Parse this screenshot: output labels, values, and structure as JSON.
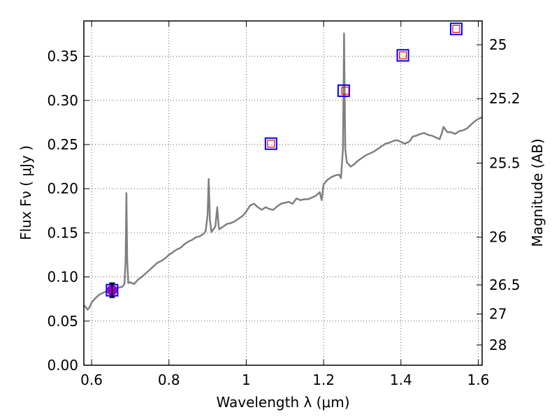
{
  "chart_data": {
    "type": "line",
    "xlabel": "Wavelength  λ (μm)",
    "ylabel": "Flux  Fν  ( μJy )",
    "y2label": "Magnitude (AB)",
    "xlim": [
      0.58,
      1.61
    ],
    "ylim": [
      0.0,
      0.39
    ],
    "x_ticks": [
      0.6,
      0.8,
      1.0,
      1.2,
      1.4,
      1.6
    ],
    "x_tick_labels": [
      "0.6",
      "0.8",
      "1",
      "1.2",
      "1.4",
      "1.6"
    ],
    "y_ticks": [
      0.0,
      0.05,
      0.1,
      0.15,
      0.2,
      0.25,
      0.3,
      0.35
    ],
    "y_tick_labels": [
      "0.00",
      "0.05",
      "0.10",
      "0.15",
      "0.20",
      "0.25",
      "0.30",
      "0.35"
    ],
    "right_axis_ticks": [
      {
        "label": "25",
        "flux": 0.363
      },
      {
        "label": "25.2",
        "flux": 0.302
      },
      {
        "label": "25.5",
        "flux": 0.229
      },
      {
        "label": "26",
        "flux": 0.145
      },
      {
        "label": "26.5",
        "flux": 0.091
      },
      {
        "label": "27",
        "flux": 0.058
      },
      {
        "label": "28",
        "flux": 0.023
      }
    ],
    "grid": true,
    "series": [
      {
        "kind": "spectrum",
        "color": "#808080",
        "x": [
          0.58,
          0.59,
          0.595,
          0.6,
          0.61,
          0.62,
          0.63,
          0.64,
          0.65,
          0.66,
          0.67,
          0.68,
          0.685,
          0.688,
          0.69,
          0.692,
          0.695,
          0.7,
          0.71,
          0.72,
          0.73,
          0.74,
          0.75,
          0.76,
          0.77,
          0.78,
          0.79,
          0.8,
          0.81,
          0.82,
          0.83,
          0.84,
          0.85,
          0.86,
          0.87,
          0.88,
          0.89,
          0.895,
          0.9,
          0.903,
          0.906,
          0.91,
          0.92,
          0.925,
          0.928,
          0.93,
          0.94,
          0.95,
          0.96,
          0.97,
          0.98,
          0.99,
          1.0,
          1.01,
          1.02,
          1.03,
          1.04,
          1.05,
          1.06,
          1.07,
          1.08,
          1.09,
          1.1,
          1.11,
          1.12,
          1.13,
          1.14,
          1.15,
          1.16,
          1.17,
          1.18,
          1.19,
          1.195,
          1.2,
          1.21,
          1.22,
          1.23,
          1.24,
          1.245,
          1.25,
          1.253,
          1.256,
          1.26,
          1.27,
          1.28,
          1.29,
          1.3,
          1.31,
          1.32,
          1.33,
          1.34,
          1.35,
          1.36,
          1.37,
          1.38,
          1.39,
          1.4,
          1.41,
          1.42,
          1.425,
          1.43,
          1.44,
          1.45,
          1.46,
          1.47,
          1.48,
          1.49,
          1.5,
          1.505,
          1.51,
          1.52,
          1.53,
          1.54,
          1.55,
          1.56,
          1.57,
          1.58,
          1.59,
          1.6,
          1.61
        ],
        "y": [
          0.068,
          0.063,
          0.066,
          0.071,
          0.076,
          0.08,
          0.082,
          0.084,
          0.085,
          0.087,
          0.088,
          0.089,
          0.092,
          0.12,
          0.195,
          0.12,
          0.093,
          0.094,
          0.092,
          0.097,
          0.1,
          0.104,
          0.108,
          0.112,
          0.116,
          0.118,
          0.121,
          0.125,
          0.128,
          0.131,
          0.133,
          0.137,
          0.14,
          0.142,
          0.145,
          0.146,
          0.149,
          0.152,
          0.17,
          0.211,
          0.165,
          0.151,
          0.157,
          0.179,
          0.16,
          0.154,
          0.157,
          0.16,
          0.161,
          0.163,
          0.166,
          0.169,
          0.174,
          0.181,
          0.183,
          0.179,
          0.176,
          0.179,
          0.177,
          0.176,
          0.18,
          0.183,
          0.184,
          0.185,
          0.183,
          0.189,
          0.187,
          0.188,
          0.188,
          0.19,
          0.192,
          0.196,
          0.187,
          0.205,
          0.21,
          0.213,
          0.215,
          0.216,
          0.212,
          0.245,
          0.376,
          0.245,
          0.23,
          0.225,
          0.228,
          0.232,
          0.235,
          0.238,
          0.24,
          0.242,
          0.245,
          0.248,
          0.251,
          0.252,
          0.254,
          0.255,
          0.253,
          0.251,
          0.253,
          0.255,
          0.259,
          0.26,
          0.262,
          0.263,
          0.261,
          0.26,
          0.258,
          0.256,
          0.262,
          0.27,
          0.264,
          0.264,
          0.262,
          0.265,
          0.266,
          0.268,
          0.272,
          0.276,
          0.279,
          0.281
        ]
      },
      {
        "kind": "photometry-model",
        "marker": "square",
        "color": "#0000ff",
        "x": [
          0.653,
          1.064,
          1.252,
          1.405,
          1.543
        ],
        "y": [
          0.085,
          0.251,
          0.311,
          0.351,
          0.381
        ]
      },
      {
        "kind": "photometry-observed",
        "marker": "square",
        "color": "#ff0000",
        "x": [
          0.653,
          1.064,
          1.256,
          1.405,
          1.543
        ],
        "y": [
          0.085,
          0.251,
          0.311,
          0.351,
          0.381
        ]
      },
      {
        "kind": "detection",
        "marker": "circle",
        "color": "#9900cc",
        "x": [
          0.653
        ],
        "y": [
          0.085
        ],
        "yerr": [
          0.008
        ]
      }
    ]
  }
}
